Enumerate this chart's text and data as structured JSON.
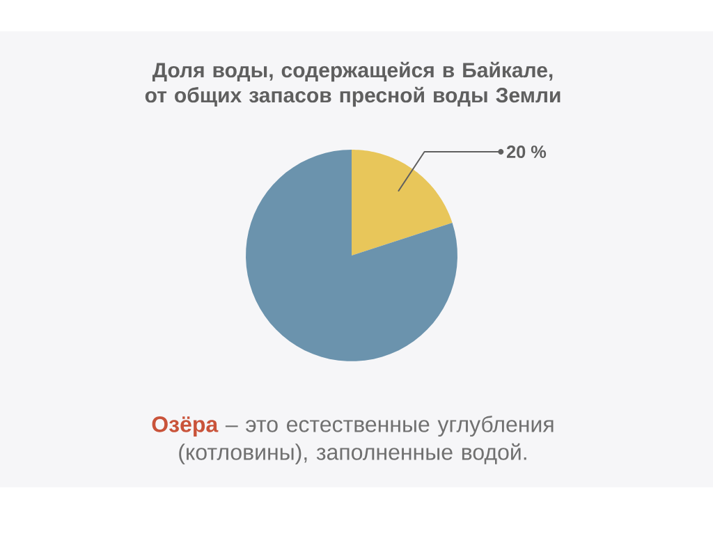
{
  "chart_data": {
    "type": "pie",
    "title": "Доля воды, содержащейся в Байкале, от общих запасов пресной воды Земли",
    "categories": [
      null,
      null
    ],
    "values": [
      20,
      80
    ],
    "colors": [
      "#e8c65a",
      "#6b93ad"
    ],
    "value_labels": [
      "20 %",
      null
    ],
    "annotations": [
      "Озёра",
      "– это естественные углубления (котловины), заполненные водой."
    ]
  }
}
